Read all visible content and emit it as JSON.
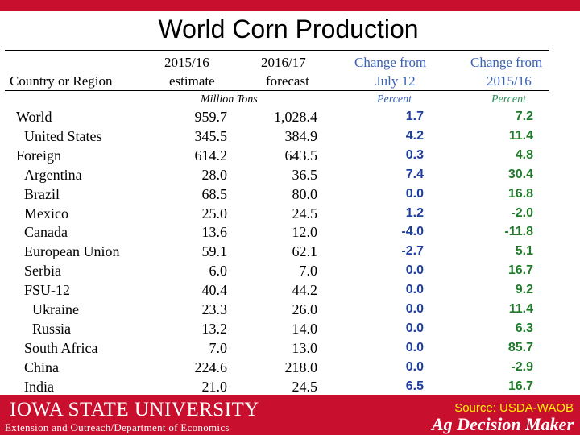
{
  "title": "World Corn Production",
  "headers": {
    "col1": [
      "",
      "Country or Region"
    ],
    "col2": [
      "2015/16",
      "estimate"
    ],
    "col3": [
      "2016/17",
      "forecast"
    ],
    "col4": [
      "Change from",
      "July 12"
    ],
    "col5": [
      "Change from",
      "2015/16"
    ]
  },
  "units": {
    "tons": "Million Tons",
    "pct1": "Percent",
    "pct2": "Percent"
  },
  "rows": [
    {
      "name": "World",
      "indent": 0,
      "v1516": "959.7",
      "v1617": "1,028.4",
      "chg_july": "1.7",
      "chg_1516": "7.2"
    },
    {
      "name": "United States",
      "indent": 1,
      "v1516": "345.5",
      "v1617": "384.9",
      "chg_july": "4.2",
      "chg_1516": "11.4"
    },
    {
      "name": "Foreign",
      "indent": 0,
      "v1516": "614.2",
      "v1617": "643.5",
      "chg_july": "0.3",
      "chg_1516": "4.8"
    },
    {
      "name": "Argentina",
      "indent": 1,
      "v1516": "28.0",
      "v1617": "36.5",
      "chg_july": "7.4",
      "chg_1516": "30.4"
    },
    {
      "name": "Brazil",
      "indent": 1,
      "v1516": "68.5",
      "v1617": "80.0",
      "chg_july": "0.0",
      "chg_1516": "16.8"
    },
    {
      "name": "Mexico",
      "indent": 1,
      "v1516": "25.0",
      "v1617": "24.5",
      "chg_july": "1.2",
      "chg_1516": "-2.0"
    },
    {
      "name": "Canada",
      "indent": 1,
      "v1516": "13.6",
      "v1617": "12.0",
      "chg_july": "-4.0",
      "chg_1516": "-11.8"
    },
    {
      "name": "European Union",
      "indent": 1,
      "v1516": "59.1",
      "v1617": "62.1",
      "chg_july": "-2.7",
      "chg_1516": "5.1"
    },
    {
      "name": "Serbia",
      "indent": 1,
      "v1516": "6.0",
      "v1617": "7.0",
      "chg_july": "0.0",
      "chg_1516": "16.7"
    },
    {
      "name": "FSU-12",
      "indent": 1,
      "v1516": "40.4",
      "v1617": "44.2",
      "chg_july": "0.0",
      "chg_1516": "9.2"
    },
    {
      "name": "Ukraine",
      "indent": 2,
      "v1516": "23.3",
      "v1617": "26.0",
      "chg_july": "0.0",
      "chg_1516": "11.4"
    },
    {
      "name": "Russia",
      "indent": 2,
      "v1516": "13.2",
      "v1617": "14.0",
      "chg_july": "0.0",
      "chg_1516": "6.3"
    },
    {
      "name": "South Africa",
      "indent": 1,
      "v1516": "7.0",
      "v1617": "13.0",
      "chg_july": "0.0",
      "chg_1516": "85.7"
    },
    {
      "name": "China",
      "indent": 1,
      "v1516": "224.6",
      "v1617": "218.0",
      "chg_july": "0.0",
      "chg_1516": "-2.9"
    },
    {
      "name": "India",
      "indent": 1,
      "v1516": "21.0",
      "v1617": "24.5",
      "chg_july": "6.5",
      "chg_1516": "16.7"
    }
  ],
  "footer": {
    "university": "IOWA STATE UNIVERSITY",
    "extension": "Extension and Outreach/Department of Economics",
    "source": "Source: USDA-WAOB",
    "brand": "Ag Decision Maker"
  },
  "colors": {
    "brand_red": "#c8102e",
    "header_blue": "#3a62b5",
    "change_blue": "#1f3f9f",
    "percent_green": "#1f7a2a",
    "source_yellow": "#fff200"
  }
}
